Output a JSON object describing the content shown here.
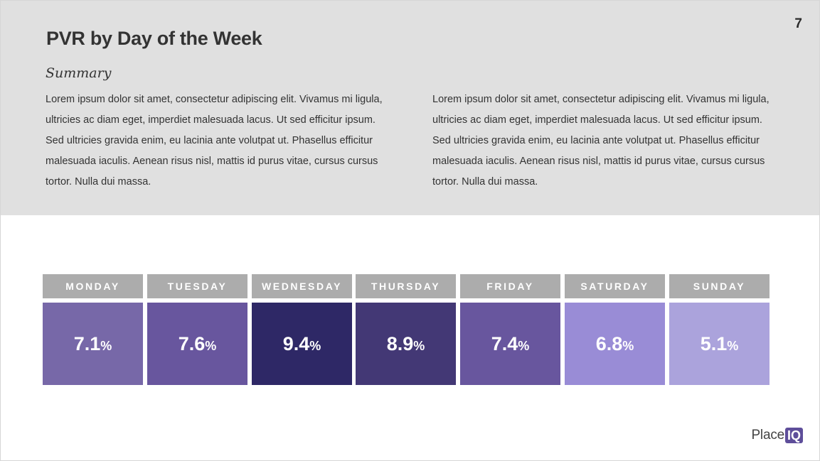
{
  "page": {
    "number": "7",
    "title": "PVR by Day of the Week",
    "summary_heading": "Summary",
    "summary_left": "Lorem ipsum dolor sit amet, consectetur adipiscing elit. Vivamus mi ligula, ultricies ac diam eget, imperdiet malesuada lacus. Ut sed efficitur ipsum. Sed ultricies gravida enim, eu lacinia ante volutpat ut. Phasellus efficitur malesuada iaculis. Aenean risus nisl, mattis id purus vitae, cursus cursus tortor. Nulla dui massa.",
    "summary_right": "Lorem ipsum dolor sit amet, consectetur adipiscing elit. Vivamus mi ligula, ultricies ac diam eget, imperdiet malesuada lacus. Ut sed efficitur ipsum. Sed ultricies gravida enim, eu lacinia ante volutpat ut. Phasellus efficitur malesuada iaculis. Aenean risus nisl, mattis id purus vitae, cursus cursus tortor. Nulla dui massa."
  },
  "logo": {
    "text": "Place",
    "badge": "IQ",
    "badge_color": "#5e4e9a"
  },
  "chart_data": {
    "type": "heatmap",
    "categories": [
      "MONDAY",
      "TUESDAY",
      "WEDNESDAY",
      "THURSDAY",
      "FRIDAY",
      "SATURDAY",
      "SUNDAY"
    ],
    "values": [
      7.1,
      7.6,
      9.4,
      8.9,
      7.4,
      6.8,
      5.1
    ],
    "value_suffix": "%",
    "label_background": "#acacac",
    "cell_colors": [
      "#7768a8",
      "#68569e",
      "#2e2866",
      "#433875",
      "#68569e",
      "#998cd6",
      "#aba3dc"
    ]
  }
}
